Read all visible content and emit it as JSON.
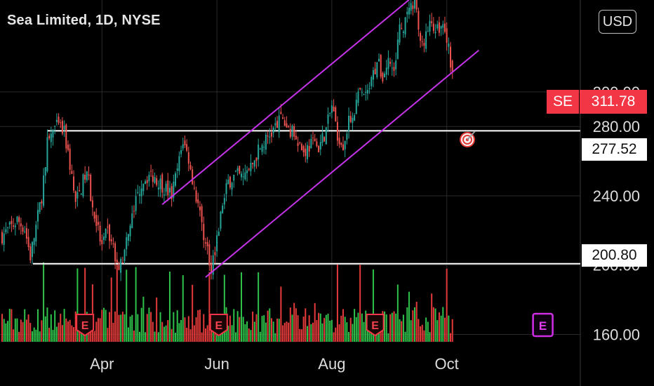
{
  "header": {
    "title": "Sea Limited, 1D, NYSE"
  },
  "currency_button": {
    "label": "USD"
  },
  "price_badges": {
    "symbol": "SE",
    "last_price": "311.78",
    "resistance_level": "277.52",
    "support_level": "200.80"
  },
  "chart_data": {
    "type": "candlestick",
    "ticker": "SE",
    "exchange": "NYSE",
    "interval": "1D",
    "y_axis": {
      "ticks": [
        160,
        200,
        240,
        280,
        300
      ],
      "tick_labels": [
        "160.00",
        "200.00",
        "240.00",
        "280.00",
        "300.00"
      ],
      "ylim": [
        146,
        336
      ],
      "position": "right"
    },
    "x_axis": {
      "tick_labels": [
        "Apr",
        "Jun",
        "Aug",
        "Oct"
      ],
      "tick_days": [
        53,
        114,
        175,
        236
      ]
    },
    "last_price": 311.78,
    "horizontal_levels": [
      {
        "label": "277.52",
        "value": 277.52,
        "color": "#ffffff"
      },
      {
        "label": "200.80",
        "value": 200.8,
        "color": "#ffffff"
      }
    ],
    "channel": {
      "color": "#c433e8",
      "lower": [
        {
          "day": 108,
          "price": 193
        },
        {
          "day": 253,
          "price": 324
        }
      ],
      "upper": [
        {
          "day": 85,
          "price": 235
        },
        {
          "day": 228,
          "price": 364
        }
      ]
    },
    "earnings_markers": [
      {
        "label": "E",
        "day": 44
      },
      {
        "label": "E",
        "day": 115
      },
      {
        "label": "E",
        "day": 198
      }
    ],
    "upcoming_earnings": {
      "label": "E",
      "day": 287
    },
    "target_icon": "target-icon",
    "colors": {
      "up": "#26a69a",
      "down": "#ef5350",
      "volume_up": "#2ec24b",
      "volume_down": "#e43a3a",
      "channel": "#c433e8",
      "earnings": "#f23645",
      "upcoming_earnings": "#cf2ee6"
    },
    "price_path": [
      {
        "day": 0,
        "close": 217
      },
      {
        "day": 5,
        "close": 222
      },
      {
        "day": 8,
        "close": 226
      },
      {
        "day": 12,
        "close": 221
      },
      {
        "day": 15,
        "close": 205
      },
      {
        "day": 18,
        "close": 222
      },
      {
        "day": 21,
        "close": 240
      },
      {
        "day": 24,
        "close": 270
      },
      {
        "day": 27,
        "close": 278
      },
      {
        "day": 30,
        "close": 280
      },
      {
        "day": 33,
        "close": 276
      },
      {
        "day": 36,
        "close": 258
      },
      {
        "day": 39,
        "close": 235
      },
      {
        "day": 42,
        "close": 245
      },
      {
        "day": 45,
        "close": 255
      },
      {
        "day": 48,
        "close": 232
      },
      {
        "day": 50,
        "close": 225
      },
      {
        "day": 53,
        "close": 210
      },
      {
        "day": 56,
        "close": 220
      },
      {
        "day": 60,
        "close": 205
      },
      {
        "day": 63,
        "close": 200
      },
      {
        "day": 66,
        "close": 212
      },
      {
        "day": 70,
        "close": 232
      },
      {
        "day": 74,
        "close": 248
      },
      {
        "day": 78,
        "close": 252
      },
      {
        "day": 82,
        "close": 250
      },
      {
        "day": 86,
        "close": 245
      },
      {
        "day": 90,
        "close": 240
      },
      {
        "day": 94,
        "close": 260
      },
      {
        "day": 96,
        "close": 272
      },
      {
        "day": 99,
        "close": 262
      },
      {
        "day": 102,
        "close": 245
      },
      {
        "day": 105,
        "close": 230
      },
      {
        "day": 108,
        "close": 212
      },
      {
        "day": 111,
        "close": 200
      },
      {
        "day": 114,
        "close": 215
      },
      {
        "day": 117,
        "close": 235
      },
      {
        "day": 120,
        "close": 248
      },
      {
        "day": 124,
        "close": 252
      },
      {
        "day": 128,
        "close": 250
      },
      {
        "day": 132,
        "close": 256
      },
      {
        "day": 136,
        "close": 266
      },
      {
        "day": 140,
        "close": 272
      },
      {
        "day": 144,
        "close": 278
      },
      {
        "day": 148,
        "close": 284
      },
      {
        "day": 152,
        "close": 279
      },
      {
        "day": 156,
        "close": 275
      },
      {
        "day": 160,
        "close": 265
      },
      {
        "day": 164,
        "close": 270
      },
      {
        "day": 168,
        "close": 268
      },
      {
        "day": 172,
        "close": 278
      },
      {
        "day": 175,
        "close": 292
      },
      {
        "day": 178,
        "close": 276
      },
      {
        "day": 181,
        "close": 270
      },
      {
        "day": 184,
        "close": 282
      },
      {
        "day": 187,
        "close": 290
      },
      {
        "day": 190,
        "close": 300
      },
      {
        "day": 193,
        "close": 296
      },
      {
        "day": 196,
        "close": 305
      },
      {
        "day": 199,
        "close": 318
      },
      {
        "day": 202,
        "close": 308
      },
      {
        "day": 205,
        "close": 318
      },
      {
        "day": 208,
        "close": 312
      },
      {
        "day": 211,
        "close": 335
      },
      {
        "day": 214,
        "close": 340
      },
      {
        "day": 217,
        "close": 348
      },
      {
        "day": 219,
        "close": 356
      },
      {
        "day": 222,
        "close": 326
      },
      {
        "day": 225,
        "close": 332
      },
      {
        "day": 228,
        "close": 340
      },
      {
        "day": 231,
        "close": 336
      },
      {
        "day": 234,
        "close": 338
      },
      {
        "day": 237,
        "close": 325
      },
      {
        "day": 239,
        "close": 311.78
      }
    ],
    "volume_peak_days": [
      22,
      40,
      44,
      48,
      58,
      61,
      66,
      71,
      75,
      82,
      89,
      96,
      101,
      110,
      118,
      127,
      136,
      148,
      155,
      166,
      178,
      190,
      197,
      210,
      216,
      220,
      228,
      236
    ]
  }
}
